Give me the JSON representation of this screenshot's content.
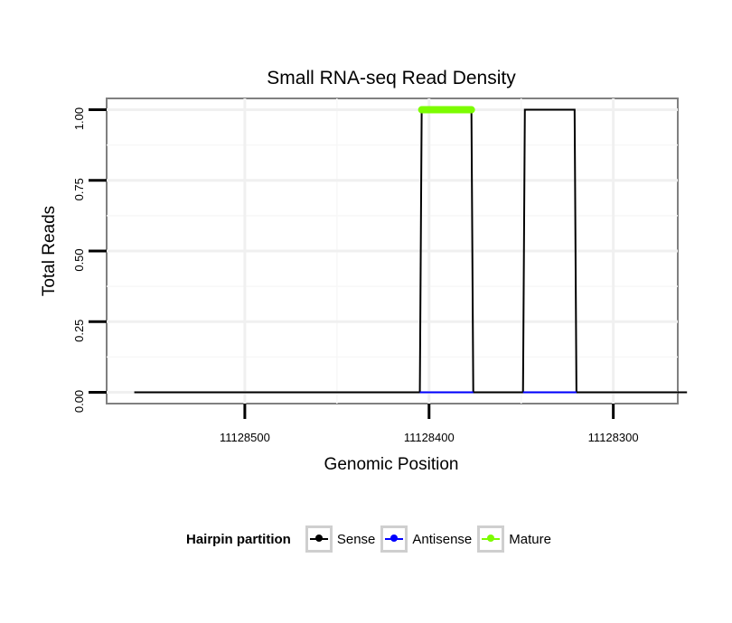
{
  "chart_data": {
    "type": "line",
    "title": "Small RNA-seq Read Density",
    "xlabel": "Genomic Position",
    "ylabel": "Total Reads",
    "x_reversed": true,
    "xlim": [
      11128575,
      11128265
    ],
    "ylim": [
      -0.04,
      1.04
    ],
    "x_ticks": [
      11128500,
      11128400,
      11128300
    ],
    "x_tick_labels": [
      "11128500",
      "11128400",
      "11128300"
    ],
    "y_ticks": [
      0,
      0.25,
      0.5,
      0.75,
      1.0
    ],
    "y_tick_labels": [
      "0.00",
      "0.25",
      "0.50",
      "0.75",
      "1.00"
    ],
    "series": [
      {
        "name": "Sense",
        "color": "#000000",
        "x": [
          11128560,
          11128405,
          11128404,
          11128377,
          11128376,
          11128349,
          11128348,
          11128321,
          11128320,
          11128260
        ],
        "y": [
          0,
          0,
          1,
          1,
          0,
          0,
          1,
          1,
          0,
          0
        ]
      },
      {
        "name": "Antisense",
        "color": "#0000ff",
        "x": [
          11128405,
          11128376,
          11128349,
          11128320
        ],
        "y": [
          0,
          0,
          0,
          0
        ],
        "segments": [
          [
            0,
            1
          ],
          [
            2,
            3
          ]
        ]
      },
      {
        "name": "Mature",
        "color": "#7cfc00",
        "x": [
          11128404,
          11128377
        ],
        "y": [
          1,
          1
        ]
      }
    ],
    "legend": {
      "title": "Hairpin partition",
      "position": "bottom",
      "entries": [
        {
          "label": "Sense",
          "color": "#000000"
        },
        {
          "label": "Antisense",
          "color": "#0000ff"
        },
        {
          "label": "Mature",
          "color": "#7cfc00"
        }
      ]
    }
  }
}
